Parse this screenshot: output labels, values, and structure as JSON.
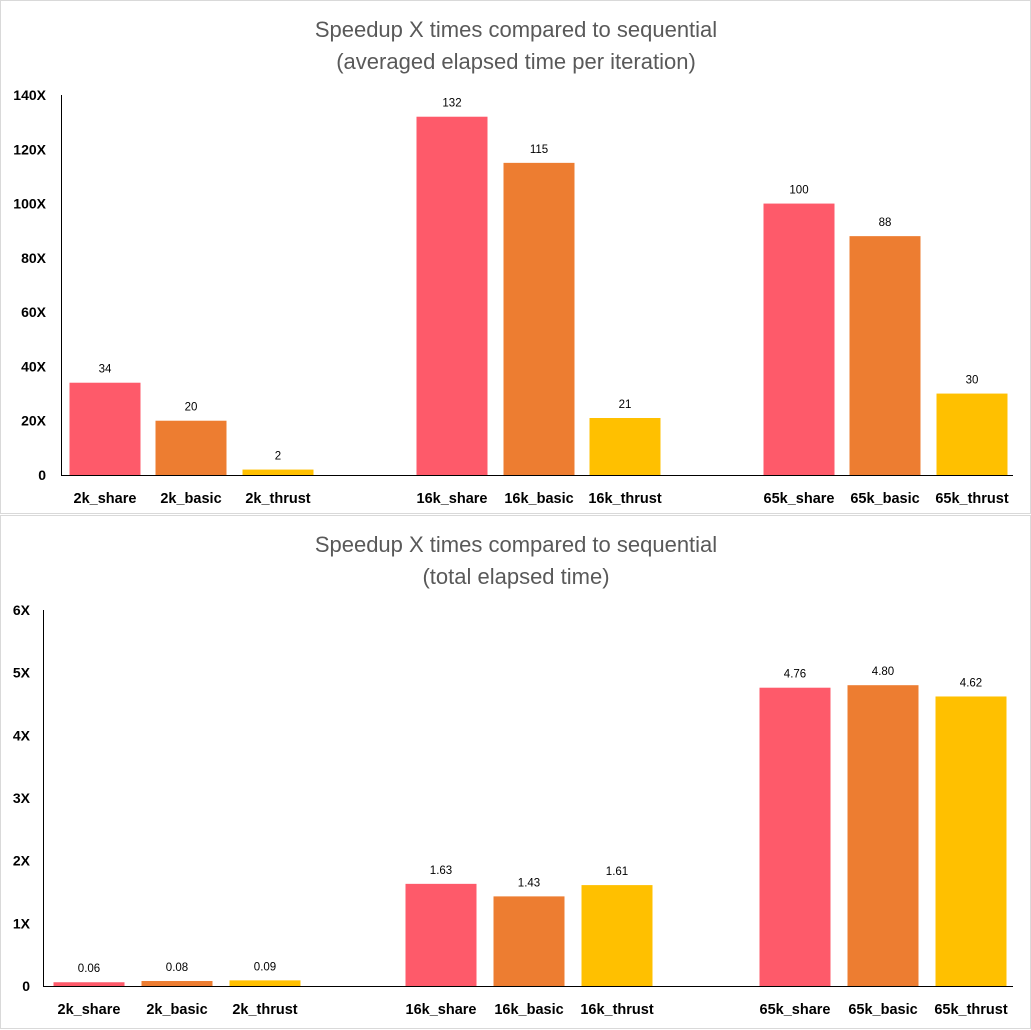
{
  "chart_data": [
    {
      "type": "bar",
      "title_lines": [
        "Speedup X times compared to sequential",
        "(averaged elapsed time per iteration)"
      ],
      "categories": [
        "2k_share",
        "2k_basic",
        "2k_thrust",
        "16k_share",
        "16k_basic",
        "16k_thrust",
        "65k_share",
        "65k_basic",
        "65k_thrust"
      ],
      "groups": [
        [
          "2k_share",
          "2k_basic",
          "2k_thrust"
        ],
        [
          "16k_share",
          "16k_basic",
          "16k_thrust"
        ],
        [
          "65k_share",
          "65k_basic",
          "65k_thrust"
        ]
      ],
      "values": [
        34,
        20,
        2,
        132,
        115,
        21,
        100,
        88,
        30
      ],
      "value_labels": [
        "34",
        "20",
        "2",
        "132",
        "115",
        "21",
        "100",
        "88",
        "30"
      ],
      "bar_colors": [
        "#fe5a6a",
        "#ed7d31",
        "#ffc000",
        "#fe5a6a",
        "#ed7d31",
        "#ffc000",
        "#fe5a6a",
        "#ed7d31",
        "#ffc000"
      ],
      "ylim": [
        0,
        140
      ],
      "yticks": [
        0,
        20,
        40,
        60,
        80,
        100,
        120,
        140
      ],
      "ytick_labels": [
        "0",
        "20X",
        "40X",
        "60X",
        "80X",
        "100X",
        "120X",
        "140X"
      ],
      "xlabel": "",
      "ylabel": ""
    },
    {
      "type": "bar",
      "title_lines": [
        "Speedup X times compared to sequential",
        "(total elapsed time)"
      ],
      "categories": [
        "2k_share",
        "2k_basic",
        "2k_thrust",
        "16k_share",
        "16k_basic",
        "16k_thrust",
        "65k_share",
        "65k_basic",
        "65k_thrust"
      ],
      "groups": [
        [
          "2k_share",
          "2k_basic",
          "2k_thrust"
        ],
        [
          "16k_share",
          "16k_basic",
          "16k_thrust"
        ],
        [
          "65k_share",
          "65k_basic",
          "65k_thrust"
        ]
      ],
      "values": [
        0.06,
        0.08,
        0.09,
        1.63,
        1.43,
        1.61,
        4.76,
        4.8,
        4.62
      ],
      "value_labels": [
        "0.06",
        "0.08",
        "0.09",
        "1.63",
        "1.43",
        "1.61",
        "4.76",
        "4.80",
        "4.62"
      ],
      "bar_colors": [
        "#fe5a6a",
        "#ed7d31",
        "#ffc000",
        "#fe5a6a",
        "#ed7d31",
        "#ffc000",
        "#fe5a6a",
        "#ed7d31",
        "#ffc000"
      ],
      "ylim": [
        0,
        6
      ],
      "yticks": [
        0,
        1,
        2,
        3,
        4,
        5,
        6
      ],
      "ytick_labels": [
        "0",
        "1X",
        "2X",
        "3X",
        "4X",
        "5X",
        "6X"
      ],
      "xlabel": "",
      "ylabel": ""
    }
  ]
}
